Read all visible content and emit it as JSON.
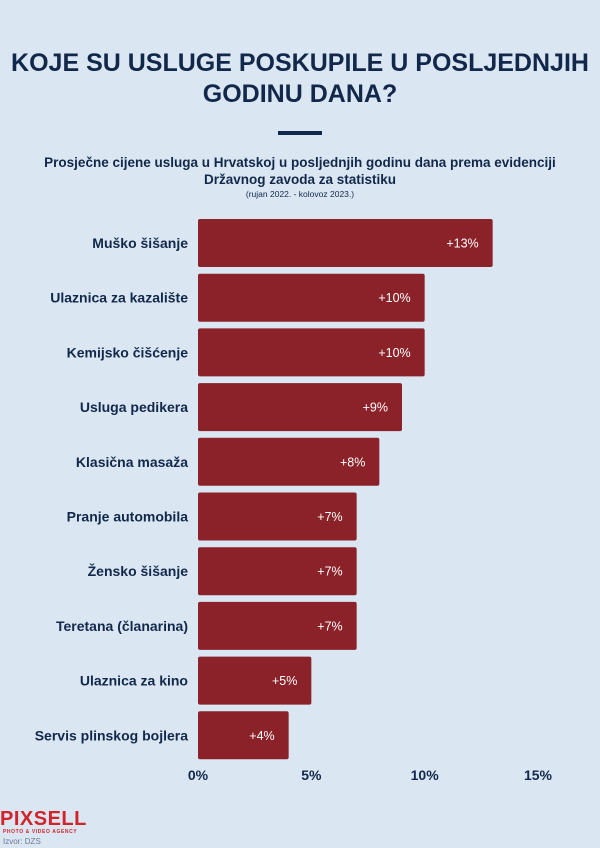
{
  "header": {
    "title": "KOJE SU USLUGE POSKUPILE U POSLJEDNJIH GODINU DANA?",
    "subtitle": "Prosječne cijene usluga u Hrvatskoj u posljednjih godinu dana prema evidenciji Državnog zavoda za statistiku",
    "note": "(rujan 2022. - kolovoz 2023.)"
  },
  "chart_data": {
    "type": "bar",
    "orientation": "horizontal",
    "categories": [
      "Muško šišanje",
      "Ulaznica za kazalište",
      "Kemijsko čišćenje",
      "Usluga pedikera",
      "Klasična masaža",
      "Pranje automobila",
      "Žensko šišanje",
      "Teretana (članarina)",
      "Ulaznica za kino",
      "Servis plinskog bojlera"
    ],
    "values": [
      13,
      10,
      10,
      9,
      8,
      7,
      7,
      7,
      5,
      4
    ],
    "data_labels": [
      "+13%",
      "+10%",
      "+10%",
      "+9%",
      "+8%",
      "+7%",
      "+7%",
      "+7%",
      "+5%",
      "+4%"
    ],
    "xlim": [
      0,
      15
    ],
    "x_ticks": [
      0,
      5,
      10,
      15
    ],
    "x_tick_labels": [
      "0%",
      "5%",
      "10%",
      "15%"
    ],
    "grid": false,
    "colors": {
      "bar": "#8b2229",
      "text": "#12284a",
      "background": "#dbe6f3"
    }
  },
  "footer": {
    "logo": "PIXSELL",
    "logo_tagline": "PHOTO & VIDEO AGENCY",
    "source": "Izvor: DZS"
  }
}
